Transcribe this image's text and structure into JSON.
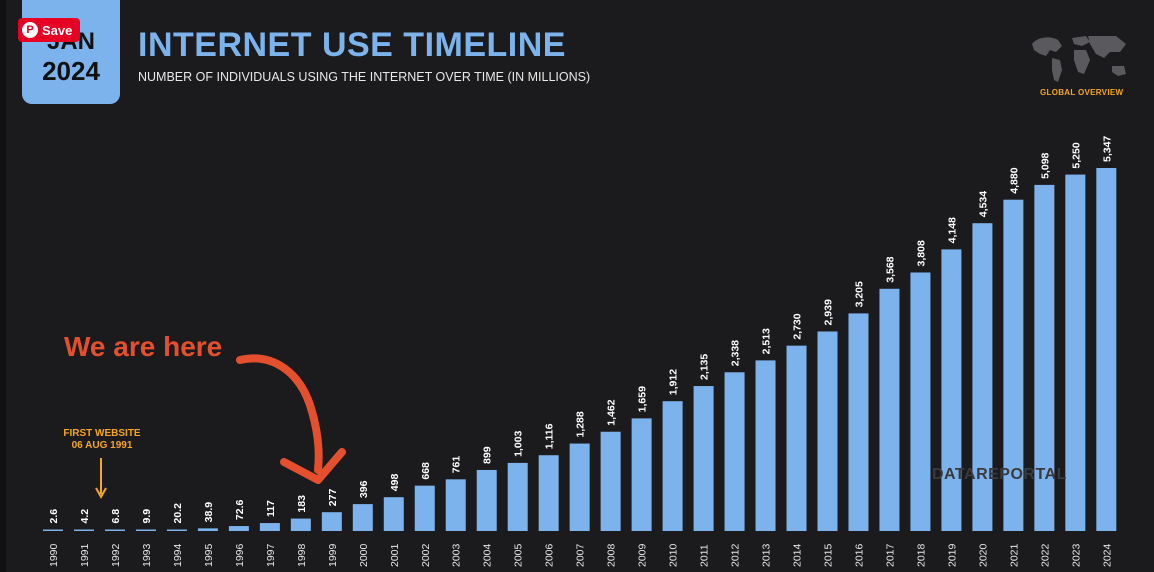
{
  "header": {
    "badge_month": "JAN",
    "badge_year": "2024",
    "title": "INTERNET USE TIMELINE",
    "subtitle": "NUMBER OF INDIVIDUALS USING THE INTERNET OVER TIME (IN MILLIONS)",
    "global_overview": "GLOBAL OVERVIEW",
    "watermark": "DATAREPORTAL"
  },
  "save_button": {
    "label": "Save",
    "icon": "pinterest-icon"
  },
  "annotations": {
    "we_are_here": "We are here",
    "first_website_line1": "FIRST WEBSITE",
    "first_website_line2": "06 AUG 1991"
  },
  "colors": {
    "background": "#1b1b1d",
    "bar": "#7db3ec",
    "title": "#7db3ec",
    "annotation_red": "#e4502e",
    "annotation_orange": "#f5a623"
  },
  "chart_data": {
    "type": "bar",
    "title": "INTERNET USE TIMELINE",
    "subtitle": "NUMBER OF INDIVIDUALS USING THE INTERNET OVER TIME (IN MILLIONS)",
    "categories": [
      "1990",
      "1991",
      "1992",
      "1993",
      "1994",
      "1995",
      "1996",
      "1997",
      "1998",
      "1999",
      "2000",
      "2001",
      "2002",
      "2003",
      "2004",
      "2005",
      "2006",
      "2007",
      "2008",
      "2009",
      "2010",
      "2011",
      "2012",
      "2013",
      "2014",
      "2015",
      "2016",
      "2017",
      "2018",
      "2019",
      "2020",
      "2021",
      "2022",
      "2023",
      "2024"
    ],
    "values": [
      2.6,
      4.2,
      6.8,
      9.9,
      20.2,
      38.9,
      72.6,
      117,
      183,
      277,
      396,
      498,
      668,
      761,
      899,
      1003,
      1116,
      1288,
      1462,
      1659,
      1912,
      2135,
      2338,
      2513,
      2730,
      2939,
      3205,
      3568,
      3808,
      4148,
      4534,
      4880,
      5098,
      5250,
      5347
    ],
    "value_labels": [
      "2.6",
      "4.2",
      "6.8",
      "9.9",
      "20.2",
      "38.9",
      "72.6",
      "117",
      "183",
      "277",
      "396",
      "498",
      "668",
      "761",
      "899",
      "1,003",
      "1,116",
      "1,288",
      "1,462",
      "1,659",
      "1,912",
      "2,135",
      "2,338",
      "2,513",
      "2,730",
      "2,939",
      "3,205",
      "3,568",
      "3,808",
      "4,148",
      "4,534",
      "4,880",
      "5,098",
      "5,250",
      "5,347"
    ],
    "grid": false,
    "legend": "none"
  }
}
